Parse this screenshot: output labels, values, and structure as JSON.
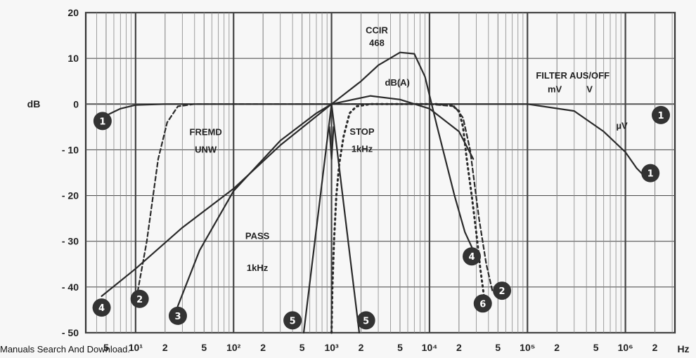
{
  "chart_data": {
    "type": "line",
    "x_scale": "log",
    "xlim": [
      3.1,
      3200000
    ],
    "ylim": [
      -50,
      20
    ],
    "yticks": [
      20,
      10,
      0,
      -10,
      -20,
      -30,
      -40,
      -50
    ],
    "ytick_labels": [
      "20",
      "10",
      "0",
      "- 10",
      "- 20",
      "- 30",
      "- 40",
      "- 50"
    ],
    "ylabel": "dB",
    "xunit": "Hz",
    "grid": true,
    "xtick_labels": [
      {
        "x": 5,
        "text": "5"
      },
      {
        "x": 10,
        "text": "10¹"
      },
      {
        "x": 20,
        "text": "2"
      },
      {
        "x": 50,
        "text": "5"
      },
      {
        "x": 100,
        "text": "10²"
      },
      {
        "x": 200,
        "text": "2"
      },
      {
        "x": 500,
        "text": "5"
      },
      {
        "x": 1000,
        "text": "10³"
      },
      {
        "x": 2000,
        "text": "2"
      },
      {
        "x": 5000,
        "text": "5"
      },
      {
        "x": 10000,
        "text": "10⁴"
      },
      {
        "x": 20000,
        "text": "2"
      },
      {
        "x": 50000,
        "text": "5"
      },
      {
        "x": 100000,
        "text": "10⁵"
      },
      {
        "x": 200000,
        "text": "2"
      },
      {
        "x": 500000,
        "text": "5"
      },
      {
        "x": 1000000,
        "text": "10⁶"
      },
      {
        "x": 2000000,
        "text": "2"
      }
    ],
    "series": [
      {
        "id": "filter-off",
        "label": "1",
        "style": "solid",
        "points": [
          [
            5,
            -2.5
          ],
          [
            7,
            -1
          ],
          [
            10,
            -0.2
          ],
          [
            20,
            0
          ],
          [
            100,
            0
          ],
          [
            1000,
            0
          ],
          [
            10000,
            0
          ],
          [
            100000,
            0
          ],
          [
            300000,
            -1.5
          ],
          [
            600000,
            -6
          ],
          [
            1000000,
            -10.5
          ],
          [
            1300000,
            -14
          ],
          [
            1600000,
            -16
          ]
        ]
      },
      {
        "id": "fremd-unw",
        "label": "2",
        "style": "dashed",
        "points": [
          [
            10.5,
            -41
          ],
          [
            13,
            -30
          ],
          [
            17,
            -12
          ],
          [
            21,
            -4
          ],
          [
            27,
            -0.5
          ],
          [
            40,
            0
          ],
          [
            10000,
            0
          ],
          [
            18000,
            -0.5
          ],
          [
            22000,
            -3
          ],
          [
            26000,
            -10
          ],
          [
            32000,
            -25
          ],
          [
            38000,
            -35
          ],
          [
            44000,
            -41
          ]
        ]
      },
      {
        "id": "weighting-3",
        "label": "3",
        "style": "solid",
        "points": [
          [
            25,
            -46
          ],
          [
            45,
            -32
          ],
          [
            100,
            -19
          ],
          [
            300,
            -8
          ],
          [
            700,
            -2
          ],
          [
            1000,
            0
          ],
          [
            2500,
            1.8
          ],
          [
            5000,
            1
          ],
          [
            10000,
            -1
          ],
          [
            20000,
            -6
          ],
          [
            28000,
            -12
          ]
        ]
      },
      {
        "id": "ccir-468",
        "label": "4",
        "style": "solid",
        "points": [
          [
            4.5,
            -42
          ],
          [
            10,
            -36
          ],
          [
            30,
            -27
          ],
          [
            100,
            -18.5
          ],
          [
            300,
            -9
          ],
          [
            1000,
            0
          ],
          [
            2000,
            5
          ],
          [
            3000,
            8.5
          ],
          [
            5000,
            11.3
          ],
          [
            7000,
            11
          ],
          [
            9000,
            6
          ],
          [
            12000,
            -5
          ],
          [
            18000,
            -20
          ],
          [
            23000,
            -28
          ],
          [
            28000,
            -32
          ]
        ]
      },
      {
        "id": "pass-1khz-left",
        "label": "5",
        "style": "solid",
        "points": [
          [
            520,
            -50
          ],
          [
            1000,
            0
          ]
        ]
      },
      {
        "id": "pass-1khz-right",
        "label": "5",
        "style": "solid",
        "points": [
          [
            1000,
            0
          ],
          [
            1920,
            -50
          ]
        ]
      },
      {
        "id": "stop-1khz",
        "label": "6",
        "style": "dotted",
        "points": [
          [
            1000,
            -50
          ],
          [
            1020,
            -40
          ],
          [
            1060,
            -30
          ],
          [
            1120,
            -20
          ],
          [
            1200,
            -13
          ],
          [
            1330,
            -7
          ],
          [
            1530,
            -2
          ],
          [
            1800,
            -0.5
          ],
          [
            2500,
            0
          ],
          [
            12000,
            0
          ],
          [
            17000,
            -0.3
          ],
          [
            20000,
            -1.5
          ],
          [
            22000,
            -5
          ],
          [
            24000,
            -12
          ],
          [
            27000,
            -20
          ],
          [
            30000,
            -28
          ],
          [
            33000,
            -36
          ],
          [
            36000,
            -42
          ]
        ]
      },
      {
        "id": "stop-notch",
        "label": "6",
        "style": "solid",
        "points": [
          [
            950,
            -5
          ],
          [
            1000,
            -12
          ],
          [
            1050,
            -5
          ]
        ]
      }
    ],
    "annotations": [
      {
        "text": "CCIR",
        "x": 2900,
        "y": 15.5
      },
      {
        "text": "468",
        "x": 2900,
        "y": 12.7
      },
      {
        "text": "dB(A)",
        "x": 4700,
        "y": 4.0
      },
      {
        "text": "FILTER AUS/OFF",
        "x": 290000,
        "y": 5.6
      },
      {
        "text": "mV",
        "x": 190000,
        "y": 2.6
      },
      {
        "text": "V",
        "x": 430000,
        "y": 2.6
      },
      {
        "text": "µV",
        "x": 920000,
        "y": -5.4
      },
      {
        "text": "FREMD",
        "x": 52,
        "y": -6.8
      },
      {
        "text": "UNW",
        "x": 52,
        "y": -10.6
      },
      {
        "text": "STOP",
        "x": 2050,
        "y": -6.7
      },
      {
        "text": "1kHz",
        "x": 2050,
        "y": -10.5
      },
      {
        "text": "PASS",
        "x": 175,
        "y": -29.5
      },
      {
        "text": "1kHz",
        "x": 175,
        "y": -36.5
      }
    ],
    "markers": [
      {
        "label": "1",
        "x": 4.6,
        "y": -3.7
      },
      {
        "label": "1",
        "x": 2300000,
        "y": -2.4
      },
      {
        "label": "1",
        "x": 1800000,
        "y": -15.1
      },
      {
        "label": "2",
        "x": 11,
        "y": -42.6
      },
      {
        "label": "2",
        "x": 55000,
        "y": -40.8
      },
      {
        "label": "3",
        "x": 27,
        "y": -46.3
      },
      {
        "label": "4",
        "x": 4.5,
        "y": -44.5
      },
      {
        "label": "4",
        "x": 27000,
        "y": -33.3
      },
      {
        "label": "5",
        "x": 400,
        "y": -47.3
      },
      {
        "label": "5",
        "x": 2250,
        "y": -47.3
      },
      {
        "label": "6",
        "x": 35000,
        "y": -43.6
      }
    ]
  },
  "footer_text": "Manuals Search And Download."
}
